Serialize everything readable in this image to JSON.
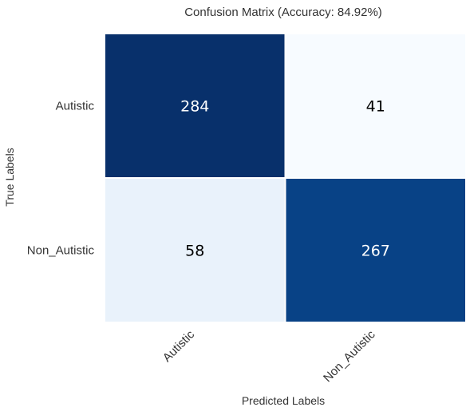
{
  "chart_data": {
    "type": "heatmap",
    "title": "Confusion Matrix (Accuracy: 84.92%)",
    "xlabel": "Predicted Labels",
    "ylabel": "True Labels",
    "x_categories": [
      "Autistic",
      "Non_Autistic"
    ],
    "y_categories": [
      "Autistic",
      "Non_Autistic"
    ],
    "values": [
      [
        284,
        41
      ],
      [
        58,
        267
      ]
    ],
    "colormap": "Blues",
    "colorbar": false,
    "grid": false,
    "colors": {
      "text_on_dark": "#ffffff",
      "text_on_light": "#000000"
    }
  }
}
